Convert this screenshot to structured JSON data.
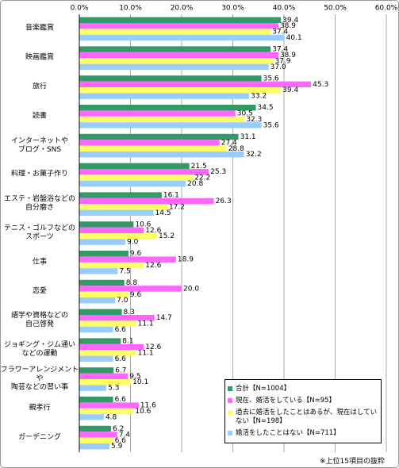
{
  "chart_data": {
    "type": "hbar",
    "categories": [
      "音楽鑑賞",
      "映画鑑賞",
      "旅行",
      "読書",
      "インターネットや\nブログ・SNS",
      "料理・お菓子作り",
      "エステ・岩盤浴などの\n自分磨き",
      "テニス・ゴルフなどの\nスポーツ",
      "仕事",
      "恋愛",
      "語学や資格などの\n自己啓発",
      "ジョギング・ジム通い\nなどの運動",
      "フラワーアレンジメントや\n陶芸などの習い事",
      "親孝行",
      "ガーデニング"
    ],
    "series": [
      {
        "name": "合計【N=1004】",
        "color": "#339966",
        "values": [
          39.4,
          37.4,
          35.6,
          34.5,
          31.1,
          21.5,
          16.1,
          10.6,
          9.6,
          8.8,
          8.3,
          8.1,
          6.7,
          6.6,
          6.2
        ],
        "value_labels": [
          "39.4",
          "37.4",
          "35.6",
          "34.5",
          "31.1",
          "21.5",
          "16.1",
          "10.6",
          "9.6",
          "8.8",
          "8.3",
          "8.1",
          "6.7",
          "6.6",
          "6.2"
        ]
      },
      {
        "name": "現在、婚活をしている【N=95】",
        "color": "#ff66ff",
        "values": [
          38.9,
          38.9,
          45.3,
          30.5,
          27.4,
          25.3,
          26.3,
          12.6,
          18.9,
          20.0,
          14.7,
          12.6,
          9.5,
          11.6,
          7.4
        ],
        "value_labels": [
          "38.9",
          "38.9",
          "45.3",
          "30.5",
          "27.4",
          "25.3",
          "26.3",
          "12.6",
          "18.9",
          "20.0",
          "14.7",
          "12.6",
          "9.5",
          "11.6",
          "7.4"
        ]
      },
      {
        "name": "過去に婚活をしたことはあるが、現在はしていない【N=198】",
        "color": "#ffff66",
        "values": [
          37.4,
          37.9,
          39.4,
          32.3,
          28.8,
          22.2,
          17.2,
          15.2,
          12.6,
          9.6,
          11.1,
          11.1,
          10.1,
          10.6,
          6.6
        ],
        "value_labels": [
          "37.4",
          "37.9",
          "39.4",
          "32.3",
          "28.8",
          "22.2",
          "17.2",
          "15.2",
          "12.6",
          "9.6",
          "11.1",
          "11.1",
          "10.1",
          "10.6",
          "6.6"
        ]
      },
      {
        "name": "婚活をしたことはない【N=711】",
        "color": "#99ccff",
        "values": [
          40.1,
          37.0,
          33.2,
          35.6,
          32.2,
          20.8,
          14.5,
          9.0,
          7.5,
          7.0,
          6.6,
          6.6,
          5.3,
          4.8,
          5.9
        ],
        "value_labels": [
          "40.1",
          "37.0",
          "33.2",
          "35.6",
          "32.2",
          "20.8",
          "14.5",
          "9.0",
          "7.5",
          "7.0",
          "6.6",
          "6.6",
          "5.3",
          "4.8",
          "5.9"
        ]
      }
    ],
    "xlim": [
      0,
      60
    ],
    "xticks": [
      {
        "value": 0,
        "label": "0.0%"
      },
      {
        "value": 10,
        "label": "10.0%"
      },
      {
        "value": 20,
        "label": "20.0%"
      },
      {
        "value": 30,
        "label": "30.0%"
      },
      {
        "value": 40,
        "label": "40.0%"
      },
      {
        "value": 50,
        "label": "50.0%"
      },
      {
        "value": 60,
        "label": "60.0%"
      }
    ],
    "grid": true,
    "legend_position": "lower right",
    "note": "※上位15項目の抜粋"
  }
}
